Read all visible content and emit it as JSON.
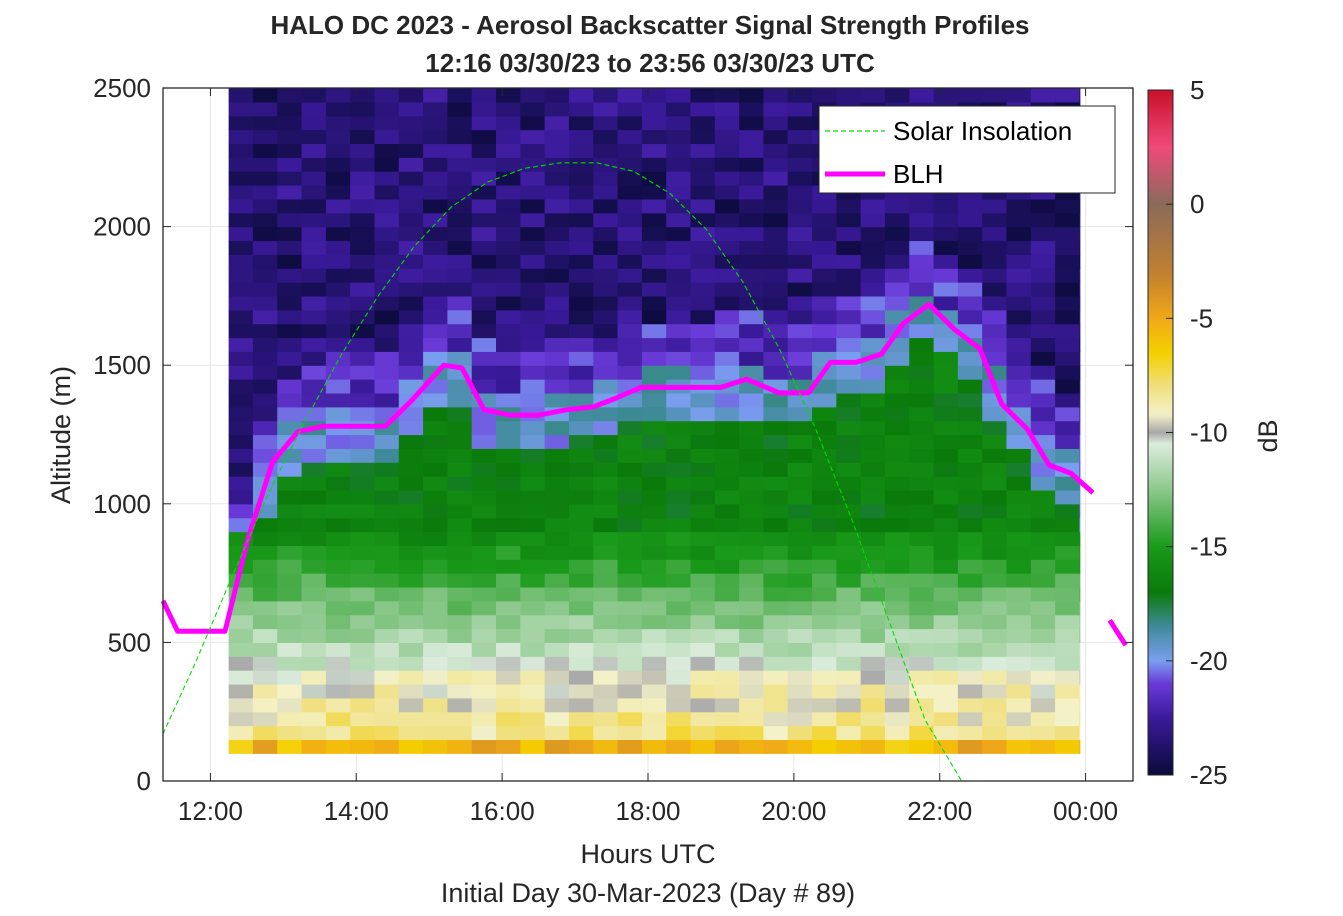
{
  "chart_data": {
    "type": "heatmap",
    "title": "HALO DC 2023 - Aerosol Backscatter Signal Strength Profiles",
    "subtitle": "12:16 03/30/23 to 23:56 03/30/23  UTC",
    "xlabel": "Hours UTC",
    "xlabel2": "Initial Day 30-Mar-2023 (Day # 89)",
    "ylabel": "Altitude (m)",
    "colorbar_label": "dB",
    "x_unit": "hours UTC (values >24 are next day)",
    "xlim": [
      11.35,
      24.65
    ],
    "ylim": [
      0,
      2500
    ],
    "x_ticks": [
      12,
      14,
      16,
      18,
      20,
      22,
      24
    ],
    "x_tick_labels": [
      "12:00",
      "14:00",
      "16:00",
      "18:00",
      "20:00",
      "22:00",
      "00:00"
    ],
    "y_ticks": [
      0,
      500,
      1000,
      1500,
      2000,
      2500
    ],
    "y_tick_labels": [
      "0",
      "500",
      "1000",
      "1500",
      "2000",
      "2500"
    ],
    "clim": [
      -25,
      5
    ],
    "colorbar_ticks": [
      -25,
      -20,
      -15,
      -10,
      -5,
      0,
      5
    ],
    "colorbar_tick_labels": [
      "-25",
      "-20",
      "-15",
      "-10",
      "-5",
      "0",
      "5"
    ],
    "grid": true,
    "legend_position": "top-right",
    "legend": [
      {
        "name": "Solar Insolation",
        "color": "#00dd00",
        "style": "dashed"
      },
      {
        "name": "BLH",
        "color": "#ff00ff",
        "style": "solid"
      }
    ],
    "colormap_stops": [
      {
        "v": -25,
        "c": "#0a0a3a"
      },
      {
        "v": -22.5,
        "c": "#3a1a9a"
      },
      {
        "v": -21,
        "c": "#6a3ad8"
      },
      {
        "v": -20,
        "c": "#7a9ef0"
      },
      {
        "v": -18.5,
        "c": "#3f8a98"
      },
      {
        "v": -17,
        "c": "#0a7a0a"
      },
      {
        "v": -15,
        "c": "#1a9a1a"
      },
      {
        "v": -12.5,
        "c": "#8cc88c"
      },
      {
        "v": -10.5,
        "c": "#dcecdc"
      },
      {
        "v": -10,
        "c": "#a8a8a8"
      },
      {
        "v": -9.2,
        "c": "#f4f2c8"
      },
      {
        "v": -8,
        "c": "#f0e080"
      },
      {
        "v": -6.5,
        "c": "#f4d000"
      },
      {
        "v": -5,
        "c": "#f0a818"
      },
      {
        "v": -3,
        "c": "#c08030"
      },
      {
        "v": 0,
        "c": "#8a6a5a"
      },
      {
        "v": 2.5,
        "c": "#f04a7a"
      },
      {
        "v": 5,
        "c": "#c8102a"
      }
    ],
    "heatmap": {
      "x_start": 12.25,
      "x_end": 23.92,
      "x_step": 0.3333,
      "y_start": 100,
      "y_end": 2500,
      "y_step": 50,
      "profile": {
        "bottom_dB": -5.5,
        "near_surface_dB": -8,
        "mixed_layer_dB": -16,
        "free_troposphere_dB": -23.5
      }
    },
    "series": [
      {
        "name": "BLH",
        "x": [
          11.35,
          11.55,
          11.95,
          12.2,
          12.5,
          12.85,
          13.2,
          13.55,
          14.0,
          14.4,
          14.75,
          15.2,
          15.45,
          15.75,
          16.1,
          16.5,
          16.9,
          17.25,
          17.55,
          17.9,
          18.5,
          19.0,
          19.35,
          19.8,
          20.2,
          20.5,
          20.85,
          21.2,
          21.5,
          21.85,
          22.2,
          22.55,
          22.85,
          23.2,
          23.5,
          23.8,
          24.1
        ],
        "y": [
          650,
          540,
          540,
          540,
          860,
          1150,
          1260,
          1280,
          1280,
          1280,
          1370,
          1500,
          1490,
          1340,
          1320,
          1320,
          1340,
          1350,
          1380,
          1420,
          1420,
          1420,
          1450,
          1400,
          1400,
          1510,
          1510,
          1540,
          1650,
          1720,
          1630,
          1560,
          1360,
          1270,
          1140,
          1110,
          1040
        ]
      },
      {
        "name": "BLH",
        "x": [
          24.33,
          24.55
        ],
        "y": [
          580,
          490
        ]
      },
      {
        "name": "Solar Insolation",
        "x": [
          11.35,
          11.8,
          12.3,
          12.8,
          13.3,
          13.8,
          14.3,
          14.8,
          15.3,
          15.8,
          16.3,
          16.8,
          17.3,
          17.8,
          18.3,
          18.8,
          19.3,
          19.8,
          20.3,
          20.8,
          21.3,
          21.8,
          22.3,
          22.8,
          23.3,
          23.5,
          24.0,
          24.65
        ],
        "y": [
          170,
          430,
          740,
          1040,
          1300,
          1540,
          1750,
          1930,
          2070,
          2160,
          2210,
          2230,
          2230,
          2200,
          2120,
          1990,
          1800,
          1560,
          1270,
          940,
          580,
          220,
          0,
          0,
          0,
          0,
          0,
          0
        ]
      }
    ]
  }
}
